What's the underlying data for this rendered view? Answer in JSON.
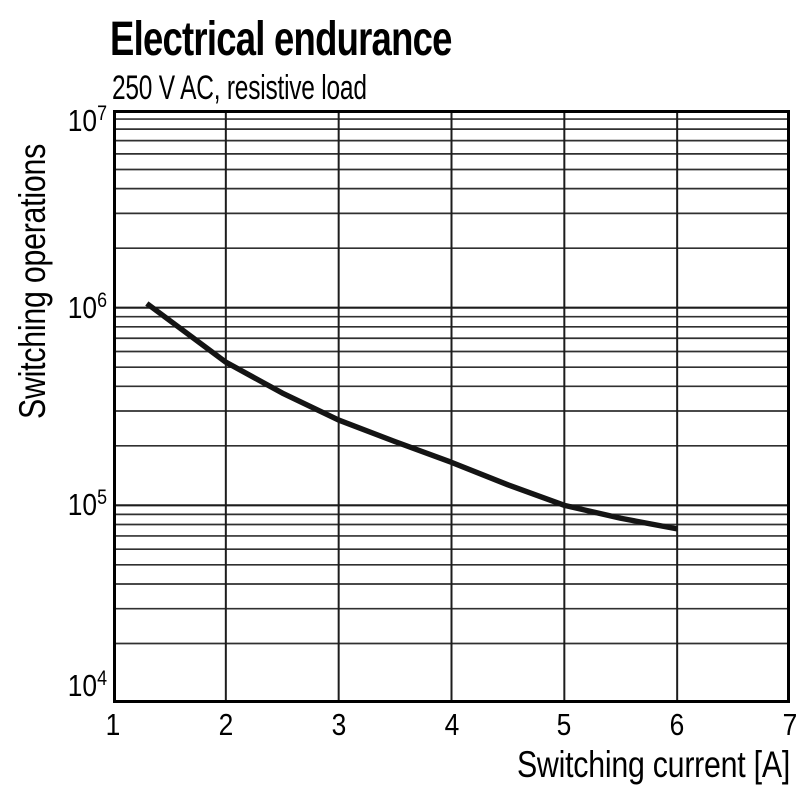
{
  "page": {
    "background": "#ffffff",
    "text_color": "#000000"
  },
  "header": {
    "title": "Electrical endurance",
    "subtitle": "250 V AC, resistive load"
  },
  "chart_data": {
    "type": "line",
    "title": "Electrical endurance",
    "subtitle": "250 V AC, resistive load",
    "xlabel": "Switching current [A]",
    "ylabel": "Switching operations",
    "x_scale": "linear",
    "y_scale": "log",
    "xlim": [
      1,
      7
    ],
    "ylim": [
      10000,
      10000000
    ],
    "x_ticks": [
      "1",
      "2",
      "3",
      "4",
      "5",
      "6",
      "7"
    ],
    "y_ticks": [
      {
        "base": "10",
        "exp": "7",
        "value": 10000000
      },
      {
        "base": "10",
        "exp": "6",
        "value": 1000000
      },
      {
        "base": "10",
        "exp": "5",
        "value": 100000
      },
      {
        "base": "10",
        "exp": "4",
        "value": 10000
      }
    ],
    "grid": {
      "vertical_major": [
        2,
        3,
        4,
        5,
        6
      ],
      "horizontal_majors": [
        100000,
        1000000
      ],
      "horizontal_log_minors": true
    },
    "legend": "none",
    "series": [
      {
        "name": "electrical-endurance-curve",
        "color": "#141414",
        "x": [
          1.3,
          2.0,
          2.5,
          3.0,
          3.5,
          4.0,
          4.5,
          5.0,
          5.5,
          6.0
        ],
        "y": [
          1050000,
          530000,
          370000,
          270000,
          210000,
          165000,
          127000,
          100000,
          86000,
          76000
        ]
      }
    ],
    "colors": {
      "curve": "#141414",
      "grid_minor": "#303030",
      "grid_major": "#1d1d1d",
      "border": "#000000",
      "background": "#ffffff",
      "text": "#000000"
    }
  }
}
